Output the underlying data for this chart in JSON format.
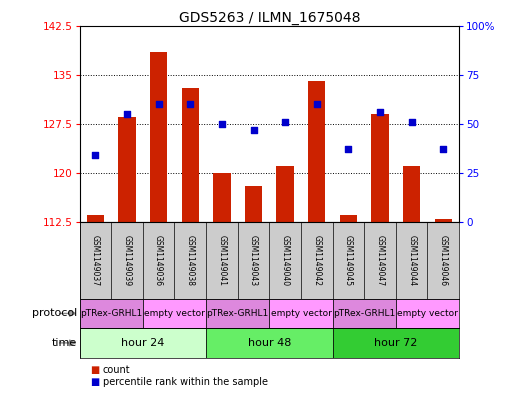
{
  "title": "GDS5263 / ILMN_1675048",
  "samples": [
    "GSM1149037",
    "GSM1149039",
    "GSM1149036",
    "GSM1149038",
    "GSM1149041",
    "GSM1149043",
    "GSM1149040",
    "GSM1149042",
    "GSM1149045",
    "GSM1149047",
    "GSM1149044",
    "GSM1149046"
  ],
  "counts": [
    113.5,
    128.5,
    138.5,
    133.0,
    120.0,
    118.0,
    121.0,
    134.0,
    113.5,
    129.0,
    121.0,
    113.0
  ],
  "percentiles": [
    34,
    55,
    60,
    60,
    50,
    47,
    51,
    60,
    37,
    56,
    51,
    37
  ],
  "ylim_left": [
    112.5,
    142.5
  ],
  "ylim_right": [
    0,
    100
  ],
  "yticks_left": [
    112.5,
    120,
    127.5,
    135,
    142.5
  ],
  "yticks_right": [
    0,
    25,
    50,
    75,
    100
  ],
  "time_groups": [
    {
      "label": "hour 24",
      "start": 0,
      "end": 4,
      "color": "#ccffcc"
    },
    {
      "label": "hour 48",
      "start": 4,
      "end": 8,
      "color": "#66ee66"
    },
    {
      "label": "hour 72",
      "start": 8,
      "end": 12,
      "color": "#33cc33"
    }
  ],
  "protocol_groups": [
    {
      "label": "pTRex-GRHL1",
      "start": 0,
      "end": 2,
      "color": "#dd88dd"
    },
    {
      "label": "empty vector",
      "start": 2,
      "end": 4,
      "color": "#ff99ff"
    },
    {
      "label": "pTRex-GRHL1",
      "start": 4,
      "end": 6,
      "color": "#dd88dd"
    },
    {
      "label": "empty vector",
      "start": 6,
      "end": 8,
      "color": "#ff99ff"
    },
    {
      "label": "pTRex-GRHL1",
      "start": 8,
      "end": 10,
      "color": "#dd88dd"
    },
    {
      "label": "empty vector",
      "start": 10,
      "end": 12,
      "color": "#ff99ff"
    }
  ],
  "bar_color": "#cc2200",
  "dot_color": "#0000cc",
  "bar_width": 0.55,
  "baseline": 112.5,
  "sample_bg": "#cccccc",
  "legend_items": [
    {
      "label": "count",
      "color": "#cc2200"
    },
    {
      "label": "percentile rank within the sample",
      "color": "#0000cc"
    }
  ]
}
